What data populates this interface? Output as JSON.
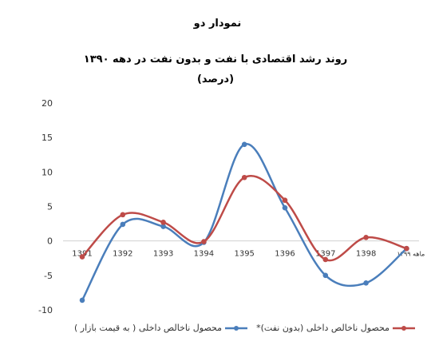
{
  "chart_data": {
    "type": "line",
    "title": "نمودار دو",
    "subtitle": "روند رشد اقتصادی با نفت و بدون نفت در دهه ۱۳۹۰",
    "unit_note": "(درصد)",
    "categories": [
      "1391",
      "1392",
      "1393",
      "1394",
      "1395",
      "1396",
      "1397",
      "1398",
      "ته ماهه ۱۳۹۹"
    ],
    "ylim": [
      -10,
      20
    ],
    "yticks": [
      "20",
      "15",
      "10",
      "5",
      "0",
      "-5",
      "-10"
    ],
    "grid": false,
    "legend_position": "bottom",
    "series": [
      {
        "name": "محصول ناخالص داخلی ( به قیمت بازار )",
        "color": "#4A7EBB",
        "values": [
          -8.6,
          2.4,
          2.1,
          -0.2,
          14.0,
          4.8,
          -5.0,
          -6.1,
          -1.1
        ]
      },
      {
        "name": "محصول ناخالص داخلی (بدون نفت)*",
        "color": "#BE4B48",
        "values": [
          -2.3,
          3.8,
          2.7,
          -0.1,
          9.2,
          5.9,
          -2.7,
          0.5,
          -1.1
        ]
      }
    ]
  }
}
